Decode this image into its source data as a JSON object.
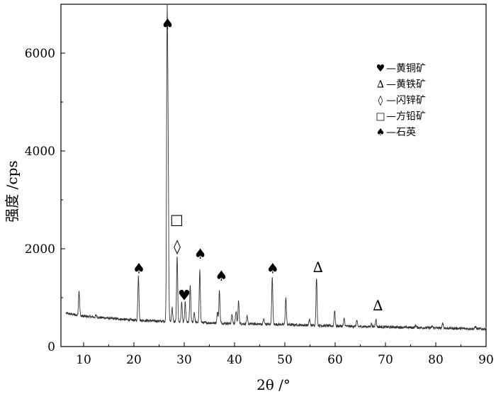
{
  "chart_data": {
    "type": "line",
    "title": "",
    "xlabel": "2θ /°",
    "ylabel": "强度 /cps",
    "xlim": [
      5.5,
      90
    ],
    "ylim": [
      0,
      7000
    ],
    "x_ticks": [
      10,
      20,
      30,
      40,
      50,
      60,
      70,
      80,
      90
    ],
    "y_ticks": [
      0,
      2000,
      4000,
      6000
    ],
    "grid": false,
    "legend_position": "top-right",
    "legend": [
      {
        "symbol": "♥",
        "label": "—黄铜矿"
      },
      {
        "symbol": "∆",
        "label": "—黄铁矿"
      },
      {
        "symbol": "◊",
        "label": "—闪锌矿"
      },
      {
        "symbol": "□",
        "label": "—方铅矿"
      },
      {
        "symbol": "♠",
        "label": "—石英"
      }
    ],
    "baseline": [
      [
        6.5,
        680
      ],
      [
        10,
        620
      ],
      [
        20,
        540
      ],
      [
        30,
        500
      ],
      [
        40,
        470
      ],
      [
        50,
        450
      ],
      [
        60,
        420
      ],
      [
        70,
        400
      ],
      [
        80,
        380
      ],
      [
        90,
        360
      ]
    ],
    "peaks": [
      {
        "x": 9.1,
        "y": 1150
      },
      {
        "x": 12.5,
        "y": 640
      },
      {
        "x": 20.9,
        "y": 1450
      },
      {
        "x": 26.6,
        "y": 6300
      },
      {
        "x": 26.8,
        "y": 3600
      },
      {
        "x": 27.6,
        "y": 800
      },
      {
        "x": 28.6,
        "y": 1850
      },
      {
        "x": 29.5,
        "y": 900
      },
      {
        "x": 30.2,
        "y": 900
      },
      {
        "x": 31.2,
        "y": 1250
      },
      {
        "x": 32.0,
        "y": 700
      },
      {
        "x": 33.1,
        "y": 1550
      },
      {
        "x": 36.6,
        "y": 700
      },
      {
        "x": 37.0,
        "y": 1150
      },
      {
        "x": 39.5,
        "y": 650
      },
      {
        "x": 40.3,
        "y": 720
      },
      {
        "x": 40.8,
        "y": 930
      },
      {
        "x": 42.5,
        "y": 610
      },
      {
        "x": 45.8,
        "y": 560
      },
      {
        "x": 47.5,
        "y": 1400
      },
      {
        "x": 50.2,
        "y": 1000
      },
      {
        "x": 54.9,
        "y": 560
      },
      {
        "x": 56.3,
        "y": 1400
      },
      {
        "x": 59.9,
        "y": 740
      },
      {
        "x": 61.8,
        "y": 570
      },
      {
        "x": 64.3,
        "y": 530
      },
      {
        "x": 67.2,
        "y": 470
      },
      {
        "x": 68.1,
        "y": 560
      },
      {
        "x": 76.0,
        "y": 440
      },
      {
        "x": 79.3,
        "y": 420
      },
      {
        "x": 81.4,
        "y": 480
      },
      {
        "x": 87.9,
        "y": 410
      }
    ],
    "peak_annotations": [
      {
        "symbol": "♠",
        "x": 21.0,
        "y": 1500
      },
      {
        "symbol": "♠",
        "x": 26.7,
        "y": 6500
      },
      {
        "symbol": "□",
        "x": 28.5,
        "y": 2500
      },
      {
        "symbol": "◊",
        "x": 28.6,
        "y": 1950
      },
      {
        "symbol": "♥",
        "x": 30.0,
        "y": 950
      },
      {
        "symbol": "♠",
        "x": 33.2,
        "y": 1800
      },
      {
        "symbol": "♠",
        "x": 37.4,
        "y": 1350
      },
      {
        "symbol": "♠",
        "x": 47.6,
        "y": 1500
      },
      {
        "symbol": "∆",
        "x": 56.6,
        "y": 1520
      },
      {
        "symbol": "∆",
        "x": 68.5,
        "y": 740
      }
    ]
  }
}
